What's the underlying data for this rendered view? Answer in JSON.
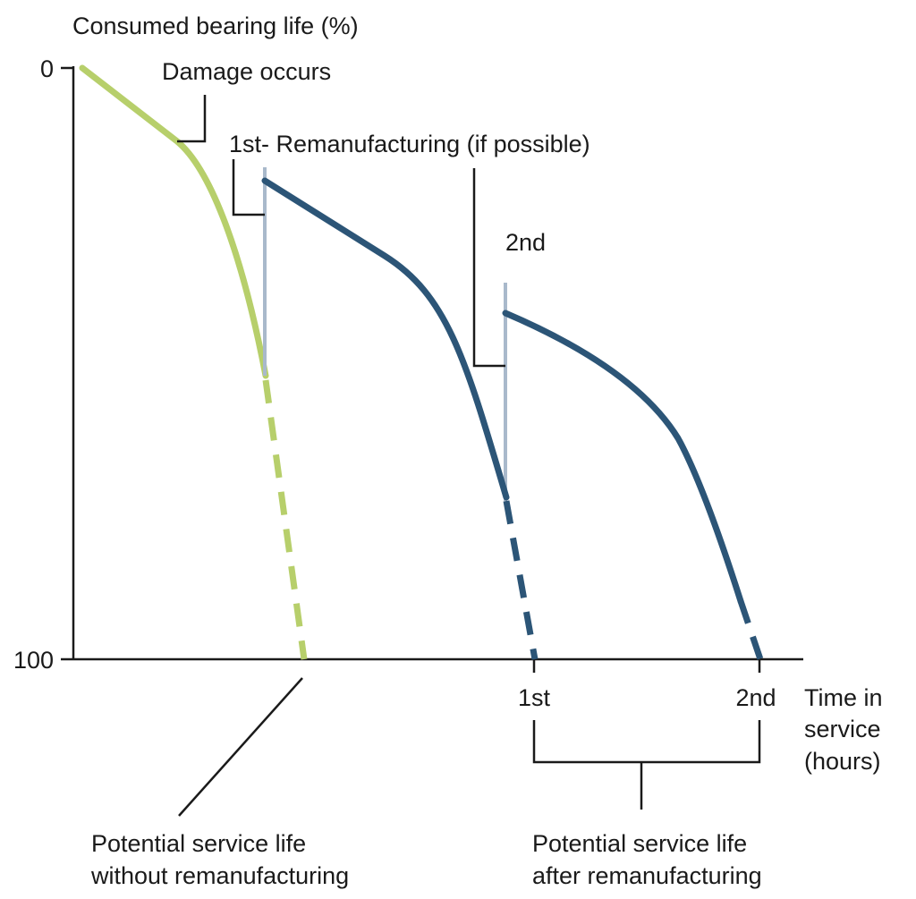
{
  "y_axis": {
    "title": "Consumed bearing life (%)",
    "tick_top": "0",
    "tick_bottom": "100"
  },
  "x_axis": {
    "title_lines": [
      "Time in",
      "service",
      "(hours)"
    ],
    "tick_1": "1st",
    "tick_2": "2nd"
  },
  "annotations": {
    "damage": "Damage occurs",
    "reman_1": "1st- Remanufacturing (if possible)",
    "reman_2": "2nd",
    "without_line1": "Potential service life",
    "without_line2": "without remanufacturing",
    "after_line1": "Potential service life",
    "after_line2": "after remanufacturing"
  },
  "colors": {
    "original_life": "#b7cf6b",
    "remanufactured_life": "#2c5577",
    "remanufacturing_step": "#a9b9cb"
  }
}
